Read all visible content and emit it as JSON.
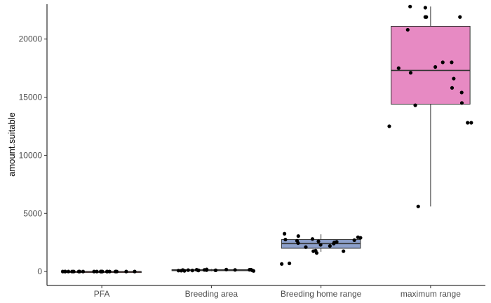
{
  "chart_data": {
    "type": "box",
    "xlabel": "",
    "ylabel": "amount.suitable",
    "ylim": [
      -1200,
      23000
    ],
    "yticks": [
      0,
      5000,
      10000,
      15000,
      20000
    ],
    "ytick_labels": [
      "0",
      "5000",
      "10000",
      "15000",
      "20000"
    ],
    "grid": false,
    "categories": [
      "PFA",
      "Breeding area",
      "Breeding home range",
      "maximum range"
    ],
    "boxes": [
      {
        "category": "PFA",
        "whisker_low": 0,
        "q1": 0,
        "median": 0,
        "q3": 0,
        "whisker_high": 0,
        "color": "#f8766d"
      },
      {
        "category": "Breeding area",
        "whisker_low": 20,
        "q1": 70,
        "median": 110,
        "q3": 160,
        "whisker_high": 220,
        "color": "#a6cee3"
      },
      {
        "category": "Breeding home range",
        "whisker_low": 1700,
        "q1": 2000,
        "median": 2400,
        "q3": 2750,
        "whisker_high": 3200,
        "color": "#8da0cb"
      },
      {
        "category": "maximum range",
        "whisker_low": 5600,
        "q1": 14400,
        "median": 17300,
        "q3": 21100,
        "whisker_high": 22800,
        "color": "#e78ac3"
      }
    ],
    "points": [
      {
        "category": "PFA",
        "values": [
          0,
          0,
          0,
          0,
          0,
          0,
          0,
          0,
          0,
          0,
          0,
          0,
          0,
          0,
          0,
          0,
          0,
          0,
          0,
          0,
          0,
          0
        ]
      },
      {
        "category": "Breeding area",
        "values": [
          150,
          100,
          80,
          120,
          160,
          60,
          140,
          110,
          170,
          90,
          130,
          50,
          180,
          120,
          100,
          150,
          70,
          140,
          110,
          90
        ]
      },
      {
        "category": "Breeding home range",
        "values": [
          3250,
          2950,
          3050,
          2700,
          2600,
          2450,
          2200,
          2800,
          1750,
          2500,
          700,
          2650,
          1600,
          2750,
          650,
          1750,
          2550,
          2400,
          2900,
          2100,
          1800,
          2300
        ]
      },
      {
        "category": "maximum range",
        "values": [
          21900,
          21900,
          21900,
          22700,
          22800,
          20800,
          18000,
          17500,
          17100,
          16600,
          15400,
          12800,
          12800,
          14500,
          15800,
          18000,
          17600,
          12500,
          14300,
          5600
        ]
      }
    ]
  }
}
